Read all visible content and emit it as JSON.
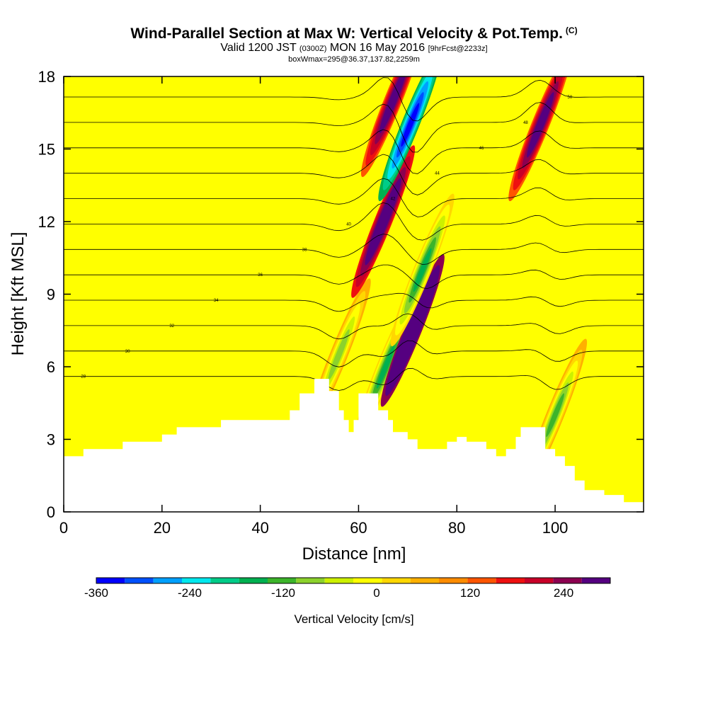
{
  "header": {
    "title": "Wind-Parallel Section at Max W: Vertical Velocity & Pot.Temp.",
    "copyright": "(C)",
    "valid_prefix": "Valid 1200 JST",
    "valid_utc": "(0300Z)",
    "valid_suffix": "MON 16 May 2016",
    "forecast": "[9hrFcst@2233z]",
    "boxwmax": "boxWmax=295@36.37,137.82,2259m"
  },
  "chart_data": {
    "type": "heatmap",
    "xlabel": "Distance [nm]",
    "ylabel": "Height [Kft MSL]",
    "xlim": [
      0,
      118
    ],
    "ylim": [
      0,
      18
    ],
    "x_ticks": [
      0,
      20,
      40,
      60,
      80,
      100
    ],
    "y_ticks": [
      0,
      3,
      6,
      9,
      12,
      15,
      18
    ],
    "colorbar": {
      "label": "Vertical Velocity [cm/s]",
      "range": [
        -360,
        300
      ],
      "step": 30,
      "tick_values": [
        -360,
        -240,
        -120,
        0,
        120,
        240
      ],
      "tick_labels": [
        "-360",
        "-240",
        "-120",
        "0",
        "120",
        "240"
      ],
      "colors": [
        "#0000ff",
        "#0050ff",
        "#00a0ff",
        "#00e8ee",
        "#00cc88",
        "#00b050",
        "#3cb42a",
        "#8cd22c",
        "#ccf000",
        "#ffff00",
        "#ffd700",
        "#ffb000",
        "#ff8c00",
        "#ff5500",
        "#ee1010",
        "#c80028",
        "#8c0050",
        "#550080"
      ]
    },
    "contours": {
      "quantity": "potential temperature",
      "labels": [
        "28",
        "30",
        "32",
        "34",
        "36",
        "38",
        "40",
        "42",
        "44",
        "46",
        "48",
        "50"
      ]
    },
    "terrain": {
      "x": [
        0,
        4,
        12,
        20,
        23,
        29,
        32,
        40,
        46,
        48,
        51,
        52,
        54,
        56,
        57,
        58,
        59,
        60,
        61,
        64,
        66,
        67,
        70,
        72,
        76,
        78,
        80,
        82,
        86,
        88,
        90,
        92,
        93,
        95,
        98,
        100,
        102,
        104,
        106,
        110,
        114,
        118
      ],
      "y": [
        2.3,
        2.6,
        2.9,
        3.2,
        3.5,
        3.5,
        3.8,
        3.8,
        4.2,
        4.9,
        5.5,
        5.5,
        5.0,
        4.2,
        3.8,
        3.3,
        3.8,
        4.9,
        4.9,
        4.2,
        3.8,
        3.3,
        3.0,
        2.6,
        2.6,
        2.9,
        3.1,
        2.9,
        2.6,
        2.3,
        2.6,
        3.1,
        3.5,
        3.5,
        2.6,
        2.3,
        1.9,
        1.3,
        0.9,
        0.7,
        0.4,
        0.3
      ]
    },
    "features": [
      {
        "x": 56,
        "y": 6.5,
        "w": -150
      },
      {
        "x": 65,
        "y": 12.0,
        "w": 220
      },
      {
        "x": 65.5,
        "y": 6.0,
        "w": -200
      },
      {
        "x": 67,
        "y": 17.0,
        "w": 200
      },
      {
        "x": 70.5,
        "y": 16.0,
        "w": -360
      },
      {
        "x": 71,
        "y": 7.5,
        "w": 295
      },
      {
        "x": 73,
        "y": 10.0,
        "w": -200
      },
      {
        "x": 97,
        "y": 16.0,
        "w": 200
      },
      {
        "x": 100,
        "y": 4.0,
        "w": -180
      }
    ]
  }
}
